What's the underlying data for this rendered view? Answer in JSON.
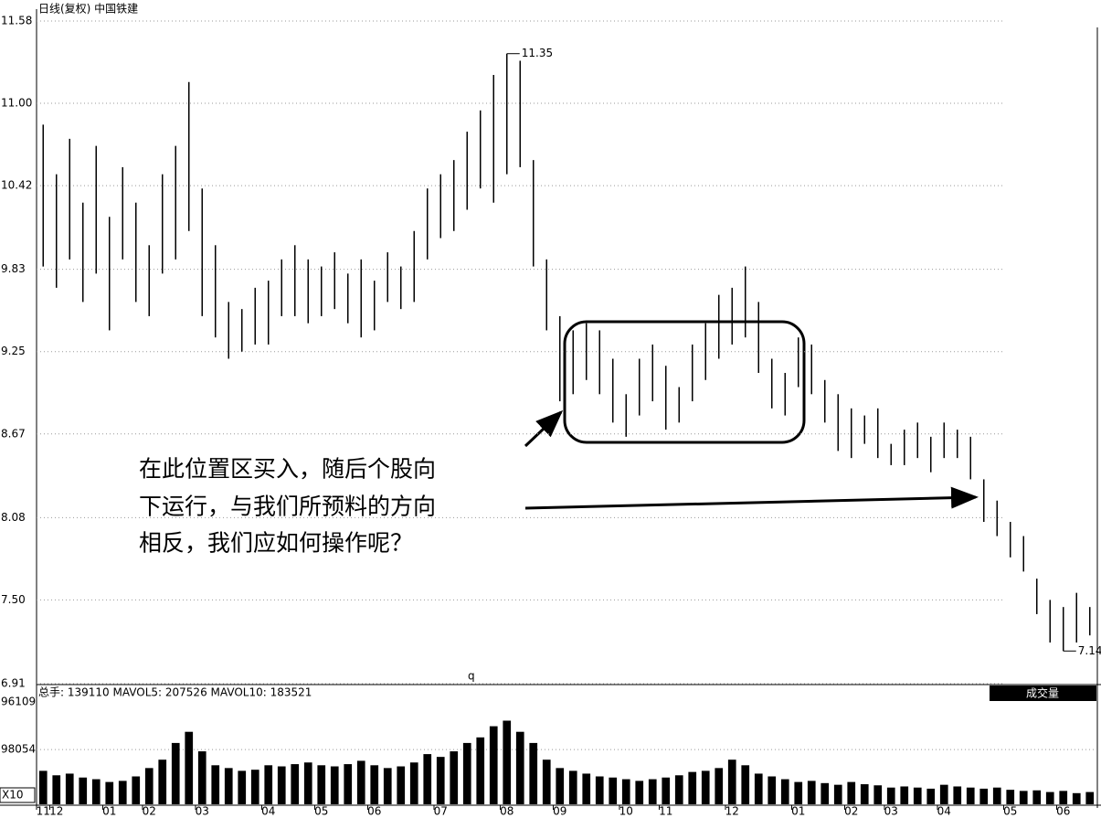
{
  "chart_data": {
    "type": "ohlc",
    "title": "日线(复权)  中国铁建",
    "categories": [
      "11",
      "12",
      null,
      null,
      null,
      "01",
      null,
      null,
      "02",
      null,
      null,
      null,
      "03",
      null,
      null,
      null,
      null,
      "04",
      null,
      null,
      null,
      "05",
      null,
      null,
      null,
      "06",
      null,
      null,
      null,
      null,
      "07",
      null,
      null,
      null,
      null,
      "08",
      null,
      null,
      null,
      "09",
      null,
      null,
      null,
      null,
      "10",
      null,
      null,
      "11",
      null,
      null,
      null,
      null,
      "12",
      null,
      null,
      null,
      null,
      "01",
      null,
      null,
      null,
      "02",
      null,
      null,
      "03",
      null,
      null,
      null,
      "04",
      null,
      null,
      null,
      null,
      "05",
      null,
      null,
      null,
      "06",
      null,
      null
    ],
    "high": [
      10.85,
      10.5,
      10.75,
      10.3,
      10.7,
      10.2,
      10.55,
      10.3,
      10.0,
      10.5,
      10.7,
      11.15,
      10.4,
      10.0,
      9.6,
      9.55,
      9.7,
      9.75,
      9.9,
      10.0,
      9.9,
      9.85,
      9.95,
      9.8,
      9.9,
      9.75,
      9.95,
      9.85,
      10.1,
      10.4,
      10.5,
      10.6,
      10.8,
      10.95,
      11.2,
      11.35,
      11.3,
      10.6,
      9.9,
      9.5,
      9.4,
      9.45,
      9.4,
      9.2,
      8.95,
      9.2,
      9.3,
      9.15,
      9.0,
      9.3,
      9.45,
      9.65,
      9.7,
      9.85,
      9.6,
      9.2,
      9.1,
      9.35,
      9.3,
      9.05,
      8.95,
      8.85,
      8.8,
      8.85,
      8.6,
      8.7,
      8.75,
      8.65,
      8.75,
      8.7,
      8.65,
      8.35,
      8.2,
      8.05,
      7.95,
      7.65,
      7.5,
      7.45,
      7.55,
      7.45
    ],
    "low": [
      9.85,
      9.7,
      9.9,
      9.6,
      9.8,
      9.4,
      9.9,
      9.6,
      9.5,
      9.8,
      9.9,
      10.1,
      9.5,
      9.35,
      9.2,
      9.25,
      9.3,
      9.3,
      9.5,
      9.5,
      9.45,
      9.5,
      9.55,
      9.45,
      9.35,
      9.4,
      9.6,
      9.55,
      9.6,
      9.9,
      10.05,
      10.1,
      10.25,
      10.4,
      10.3,
      10.5,
      10.55,
      9.85,
      9.4,
      8.9,
      8.95,
      9.05,
      8.95,
      8.75,
      8.65,
      8.8,
      8.9,
      8.7,
      8.75,
      8.9,
      9.05,
      9.2,
      9.3,
      9.35,
      9.1,
      8.85,
      8.8,
      9.0,
      8.95,
      8.75,
      8.55,
      8.5,
      8.6,
      8.5,
      8.45,
      8.45,
      8.5,
      8.4,
      8.5,
      8.5,
      8.35,
      8.05,
      7.95,
      7.8,
      7.7,
      7.4,
      7.2,
      7.14,
      7.2,
      7.25
    ],
    "ylim": [
      6.91,
      11.58
    ],
    "yticks": [
      11.58,
      {
        "value": 11,
        "label": "11.00"
      },
      10.42,
      9.83,
      9.25,
      8.67,
      8.08,
      {
        "value": 7.5,
        "label": "7.50"
      },
      6.91
    ],
    "peak_label": "11.35",
    "low_label": "7.14",
    "marker": "q",
    "annotation": [
      "在此位置区买入，随后个股向",
      "下运行，与我们所预料的方向",
      "相反，我们应如何操作呢？"
    ],
    "volume_header": "总手: 139110 MAVOL5: 207526 MAVOL10: 183521",
    "volume_button": "成交量",
    "volume_top_label": "96109",
    "volume_unit": "X10",
    "volume_ylim": [
      0,
      200000
    ],
    "volume_yticks": [
      98054
    ],
    "volume": [
      60000,
      52000,
      55000,
      48000,
      45000,
      40000,
      42000,
      50000,
      65000,
      80000,
      110000,
      130000,
      95000,
      70000,
      65000,
      60000,
      62000,
      70000,
      68000,
      72000,
      75000,
      70000,
      68000,
      72000,
      78000,
      70000,
      65000,
      68000,
      75000,
      90000,
      85000,
      95000,
      110000,
      120000,
      140000,
      150000,
      130000,
      110000,
      80000,
      65000,
      60000,
      55000,
      50000,
      48000,
      45000,
      42000,
      45000,
      48000,
      52000,
      58000,
      60000,
      65000,
      80000,
      70000,
      55000,
      50000,
      45000,
      40000,
      42000,
      38000,
      35000,
      40000,
      36000,
      34000,
      30000,
      32000,
      30000,
      28000,
      35000,
      32000,
      30000,
      28000,
      30000,
      26000,
      24000,
      25000,
      22000,
      24000,
      20000,
      22000
    ],
    "color": "#000000"
  }
}
